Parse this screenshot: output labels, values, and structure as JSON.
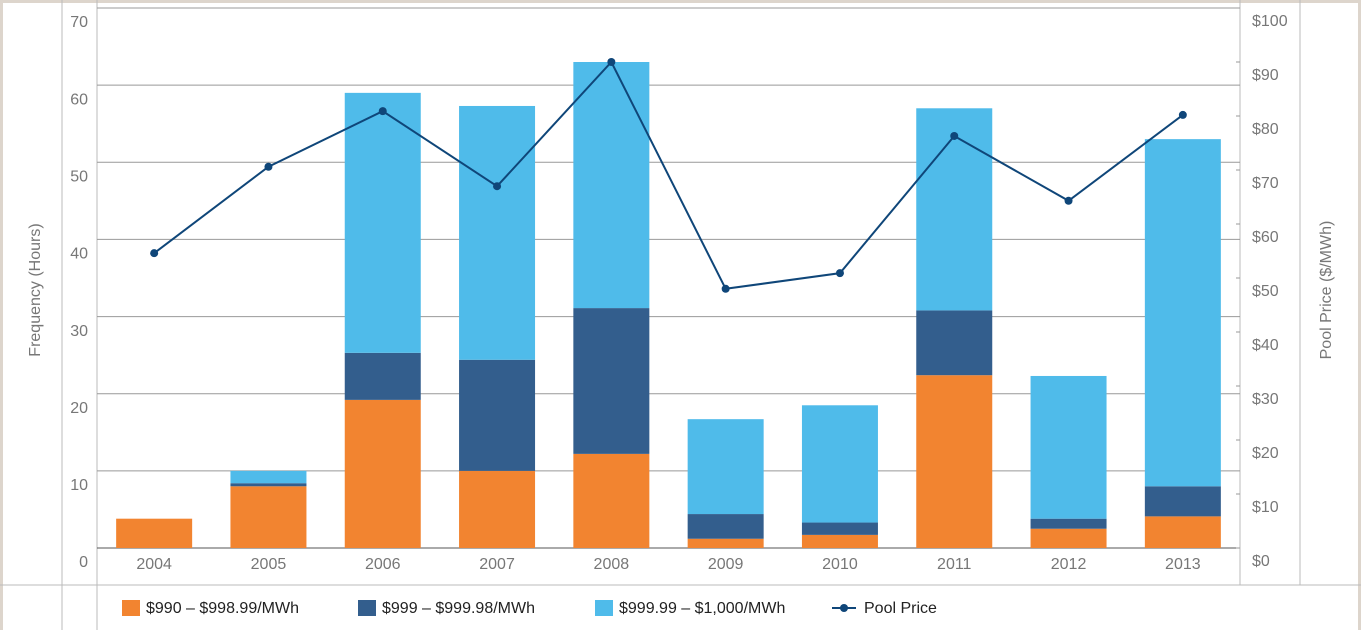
{
  "chart_data": {
    "type": "bar",
    "categories": [
      "2004",
      "2005",
      "2006",
      "2007",
      "2008",
      "2009",
      "2010",
      "2011",
      "2012",
      "2013"
    ],
    "y_label": "Frequency (Hours)",
    "y2_label": "Pool Price ($/MWh)",
    "ylim": [
      0,
      70
    ],
    "yticks": [
      0,
      10,
      20,
      30,
      40,
      50,
      60,
      70
    ],
    "y2lim": [
      0,
      100
    ],
    "y2ticks": [
      {
        "value": 0,
        "label": "$0"
      },
      {
        "value": 10,
        "label": "$10"
      },
      {
        "value": 20,
        "label": "$20"
      },
      {
        "value": 30,
        "label": "$30"
      },
      {
        "value": 40,
        "label": "$40"
      },
      {
        "value": 50,
        "label": "$50"
      },
      {
        "value": 60,
        "label": "$60"
      },
      {
        "value": 70,
        "label": "$70"
      },
      {
        "value": 80,
        "label": "$80"
      },
      {
        "value": 90,
        "label": "$90"
      },
      {
        "value": 100,
        "label": "$100"
      }
    ],
    "grid": true,
    "series": [
      {
        "name": "$990 – $998.99/MWh",
        "color": "#f28430",
        "values": [
          3.8,
          8,
          19.2,
          10,
          12.2,
          1.2,
          1.7,
          22.4,
          2.5,
          4.1
        ]
      },
      {
        "name": "$999 – $999.98/MWh",
        "color": "#335e8d",
        "values": [
          0,
          0.4,
          6.1,
          14.4,
          18.9,
          3.2,
          1.6,
          8.4,
          1.3,
          3.9
        ]
      },
      {
        "name": "$999.99 – $1,000/MWh",
        "color": "#4fbbea",
        "values": [
          0,
          1.6,
          33.7,
          32.9,
          31.9,
          12.3,
          15.2,
          26.2,
          18.5,
          45
        ]
      },
      {
        "name": "Pool Price",
        "type": "line",
        "axis": "y2",
        "color": "#0f4679",
        "values": [
          54.6,
          70.6,
          80.9,
          67,
          90,
          48,
          50.9,
          76.3,
          64.3,
          80.2
        ]
      }
    ]
  }
}
